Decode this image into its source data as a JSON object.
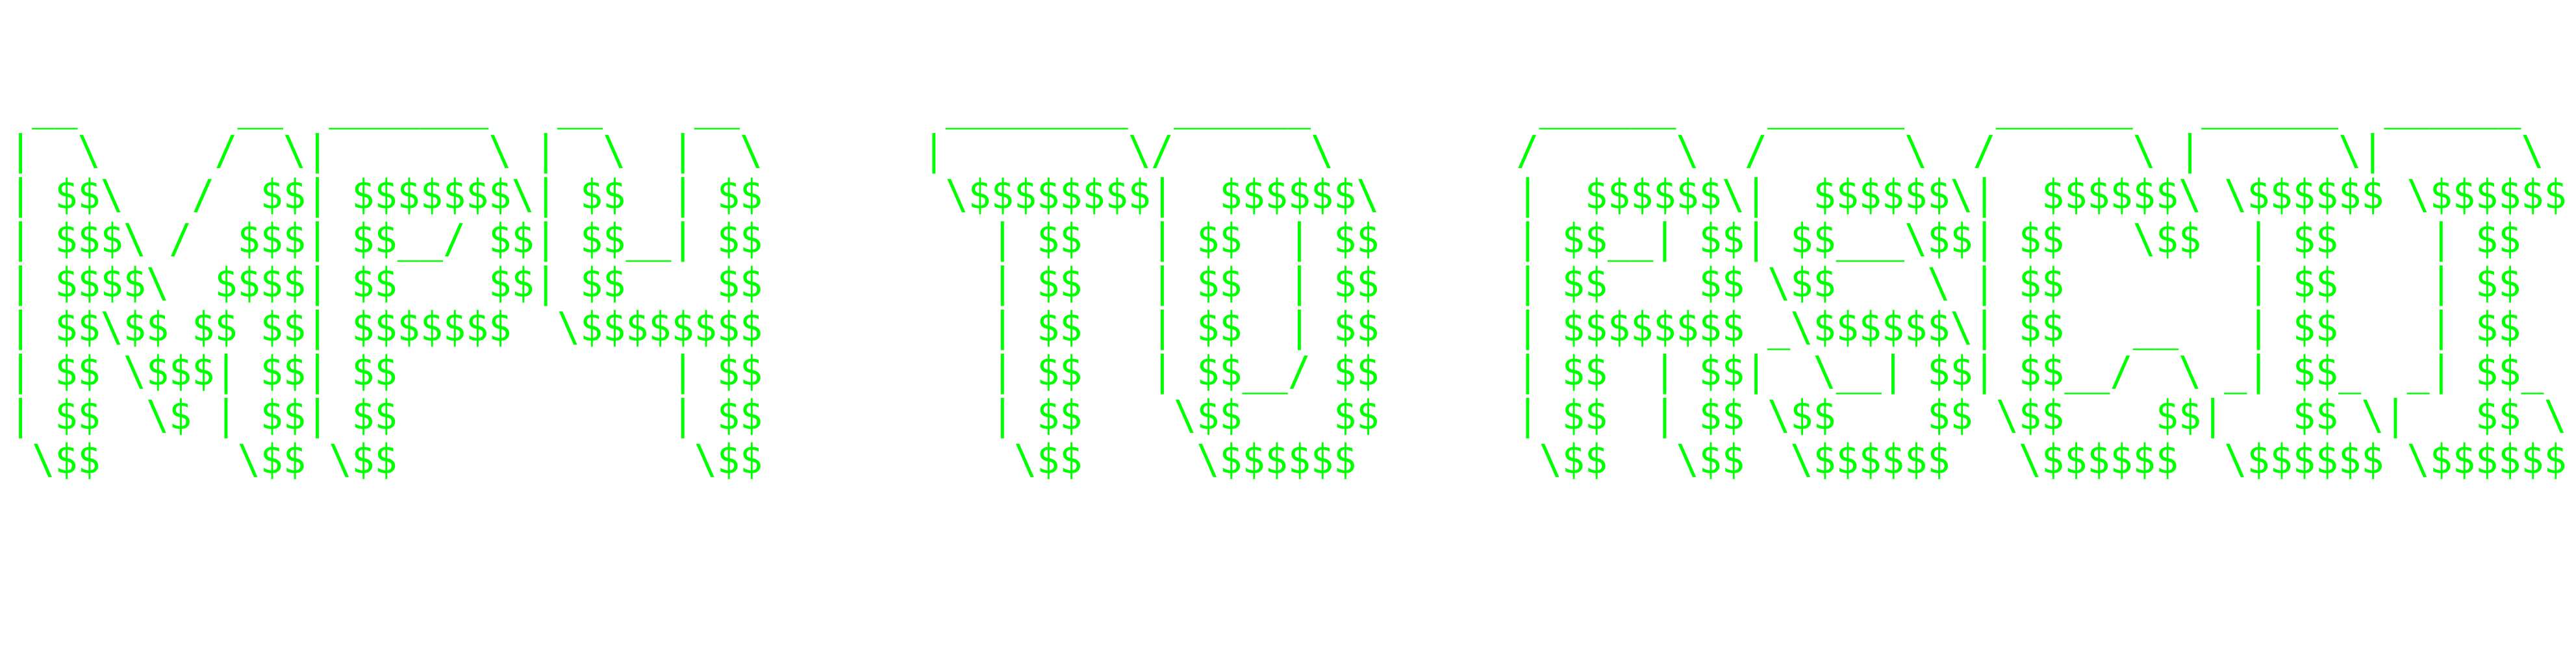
{
  "banner": {
    "color": "#00ff00",
    "background": "#ffffff",
    "ascii_art": " __       __  _______   __    __         ________  ______          ______    ______    ______   ______  ______ \n|  \\     /  \\|       \\ |  \\  |  \\       |        \\/      \\        /      \\  /      \\  /      \\ |      \\|      \\\n| $$\\   /  $$| $$$$$$$\\| $$  | $$        \\$$$$$$$$|  $$$$$$\\      |  $$$$$$\\|  $$$$$$\\|  $$$$$$\\ \\$$$$$$ \\$$$$$$\n| $$$\\ /  $$$| $$__/ $$| $$__| $$          | $$   | $$  | $$      | $$__| $$| $$___\\$$| $$   \\$$  | $$    | $$  \n| $$$$\\  $$$$| $$    $$| $$    $$          | $$   | $$  | $$      | $$    $$ \\$$    \\ | $$        | $$    | $$  \n| $$\\$$ $$ $$| $$$$$$$  \\$$$$$$$$          | $$   | $$  | $$      | $$$$$$$$ _\\$$$$$$\\| $$   __   | $$    | $$  \n| $$ \\$$$| $$| $$            | $$          | $$   | $$__/ $$      | $$  | $$|  \\__| $$| $$__/  \\ _| $$_  _| $$_ \n| $$  \\$ | $$| $$            | $$          | $$    \\$$    $$      | $$  | $$ \\$$    $$ \\$$    $$|   $$ \\|   $$ \\\n \\$$      \\$$ \\$$             \\$$           \\$$     \\$$$$$$        \\$$   \\$$  \\$$$$$$   \\$$$$$$  \\$$$$$$ \\$$$$$$"
  }
}
